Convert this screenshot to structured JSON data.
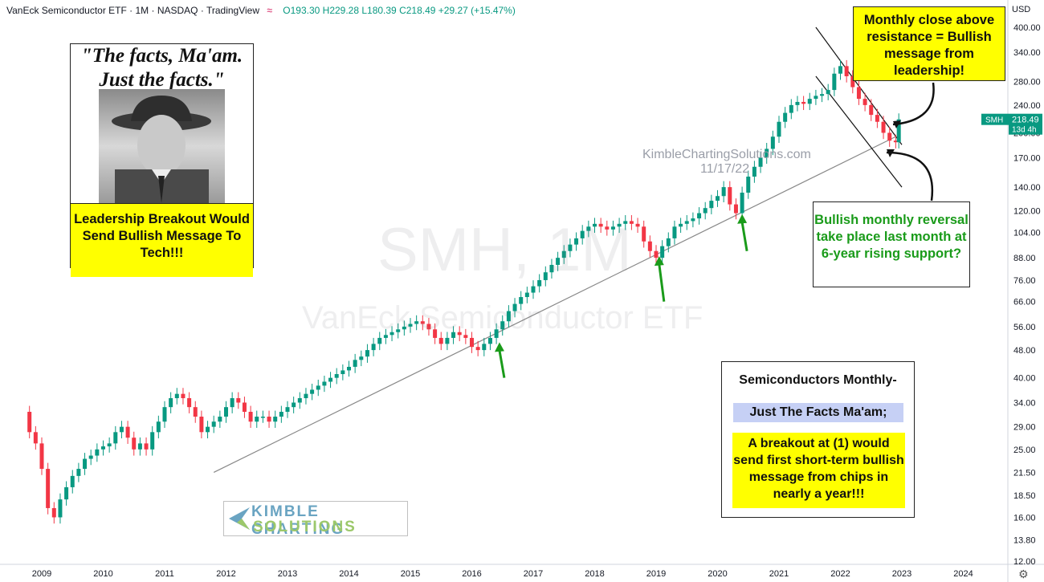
{
  "header": {
    "title": "VanEck Semiconductor ETF · 1M · NASDAQ · TradingView",
    "icon": "waves-icon",
    "ohlc": "O193.30 H229.28 L180.39 C218.49 +29.27 (+15.47%)"
  },
  "watermark": {
    "symbol": "SMH, 1M",
    "name": "VanEck Semiconductor ETF",
    "site": "KimbleChartingSolutions.com",
    "date": "11/17/22"
  },
  "price_label": {
    "symbol": "SMH",
    "price": "218.49",
    "countdown": "13d 4h"
  },
  "annotations": {
    "quote": "\"The facts, Ma'am. Just the facts.\"",
    "leadership": "Leadership Breakout Would Send Bullish Message To Tech!!!",
    "monthly_close": "Monthly close above resistance = Bullish message from leadership!",
    "reversal": "Bullish monthly reversal take place last month at 6-year rising support?",
    "semis_title": "Semiconductors Monthly-",
    "semis_subtitle": "Just The Facts Ma'am;",
    "semis_body": "A breakout at (1) would send first short-term bullish message from chips in nearly a year!!!"
  },
  "logo": {
    "line1": "KIMBLE CHARTING",
    "line2": "SOLUTIONS"
  },
  "colors": {
    "up": "#089981",
    "down": "#f23645",
    "arrow": "#1a9b1a",
    "highlight": "#ffff00",
    "axis_text": "#131722"
  },
  "chart_data": {
    "type": "candlestick",
    "scale": "log",
    "currency": "USD",
    "x_ticks": [
      "2009",
      "2010",
      "2011",
      "2012",
      "2013",
      "2014",
      "2015",
      "2016",
      "2017",
      "2018",
      "2019",
      "2020",
      "2021",
      "2022",
      "2023",
      "2024"
    ],
    "y_ticks": [
      "400.00",
      "340.00",
      "280.00",
      "240.00",
      "200.00",
      "170.00",
      "140.00",
      "120.00",
      "104.00",
      "88.00",
      "76.00",
      "66.00",
      "56.00",
      "48.00",
      "40.00",
      "34.00",
      "29.00",
      "25.00",
      "21.50",
      "18.50",
      "16.00",
      "13.80",
      "12.00"
    ],
    "last_price": 218.49,
    "series_close": [
      [
        2008.6,
        32
      ],
      [
        2008.8,
        28
      ],
      [
        2008.9,
        26
      ],
      [
        2009.0,
        22
      ],
      [
        2009.1,
        17
      ],
      [
        2009.2,
        16
      ],
      [
        2009.3,
        18
      ],
      [
        2009.4,
        19.5
      ],
      [
        2009.5,
        21
      ],
      [
        2009.6,
        22
      ],
      [
        2009.7,
        23.5
      ],
      [
        2009.8,
        24
      ],
      [
        2009.9,
        25
      ],
      [
        2010.0,
        25.5
      ],
      [
        2010.1,
        26
      ],
      [
        2010.2,
        28
      ],
      [
        2010.3,
        29
      ],
      [
        2010.4,
        27
      ],
      [
        2010.5,
        25
      ],
      [
        2010.6,
        26
      ],
      [
        2010.7,
        25
      ],
      [
        2010.8,
        28
      ],
      [
        2010.9,
        30
      ],
      [
        2011.0,
        33
      ],
      [
        2011.1,
        35
      ],
      [
        2011.2,
        36
      ],
      [
        2011.3,
        35
      ],
      [
        2011.4,
        33
      ],
      [
        2011.5,
        31
      ],
      [
        2011.6,
        28
      ],
      [
        2011.7,
        29
      ],
      [
        2011.8,
        30
      ],
      [
        2011.9,
        31
      ],
      [
        2012.0,
        33
      ],
      [
        2012.1,
        35
      ],
      [
        2012.2,
        34
      ],
      [
        2012.3,
        32
      ],
      [
        2012.4,
        30
      ],
      [
        2012.5,
        31
      ],
      [
        2012.6,
        31
      ],
      [
        2012.7,
        30
      ],
      [
        2012.8,
        31
      ],
      [
        2012.9,
        32
      ],
      [
        2013.0,
        33
      ],
      [
        2013.1,
        34
      ],
      [
        2013.2,
        35
      ],
      [
        2013.3,
        36
      ],
      [
        2013.4,
        37
      ],
      [
        2013.5,
        38
      ],
      [
        2013.6,
        39
      ],
      [
        2013.7,
        40
      ],
      [
        2013.8,
        41
      ],
      [
        2013.9,
        42
      ],
      [
        2014.0,
        43
      ],
      [
        2014.1,
        45
      ],
      [
        2014.2,
        46
      ],
      [
        2014.3,
        48
      ],
      [
        2014.4,
        50
      ],
      [
        2014.5,
        52
      ],
      [
        2014.6,
        53
      ],
      [
        2014.7,
        54
      ],
      [
        2014.8,
        55
      ],
      [
        2014.9,
        56
      ],
      [
        2015.0,
        57
      ],
      [
        2015.1,
        58
      ],
      [
        2015.2,
        57
      ],
      [
        2015.3,
        55
      ],
      [
        2015.4,
        52
      ],
      [
        2015.5,
        50
      ],
      [
        2015.6,
        52
      ],
      [
        2015.7,
        54
      ],
      [
        2015.8,
        53
      ],
      [
        2015.9,
        52
      ],
      [
        2016.0,
        49
      ],
      [
        2016.1,
        48
      ],
      [
        2016.2,
        50
      ],
      [
        2016.3,
        52
      ],
      [
        2016.4,
        55
      ],
      [
        2016.5,
        58
      ],
      [
        2016.6,
        62
      ],
      [
        2016.7,
        65
      ],
      [
        2016.8,
        68
      ],
      [
        2016.9,
        70
      ],
      [
        2017.0,
        73
      ],
      [
        2017.1,
        76
      ],
      [
        2017.2,
        80
      ],
      [
        2017.3,
        84
      ],
      [
        2017.4,
        88
      ],
      [
        2017.5,
        92
      ],
      [
        2017.6,
        96
      ],
      [
        2017.7,
        100
      ],
      [
        2017.8,
        105
      ],
      [
        2017.9,
        108
      ],
      [
        2018.0,
        110
      ],
      [
        2018.1,
        108
      ],
      [
        2018.2,
        106
      ],
      [
        2018.3,
        108
      ],
      [
        2018.4,
        110
      ],
      [
        2018.5,
        112
      ],
      [
        2018.6,
        110
      ],
      [
        2018.7,
        108
      ],
      [
        2018.8,
        98
      ],
      [
        2018.9,
        92
      ],
      [
        2019.0,
        88
      ],
      [
        2019.1,
        95
      ],
      [
        2019.2,
        100
      ],
      [
        2019.3,
        108
      ],
      [
        2019.4,
        110
      ],
      [
        2019.5,
        112
      ],
      [
        2019.6,
        114
      ],
      [
        2019.7,
        118
      ],
      [
        2019.8,
        122
      ],
      [
        2019.9,
        128
      ],
      [
        2020.0,
        132
      ],
      [
        2020.1,
        140
      ],
      [
        2020.2,
        125
      ],
      [
        2020.3,
        118
      ],
      [
        2020.4,
        135
      ],
      [
        2020.5,
        150
      ],
      [
        2020.6,
        160
      ],
      [
        2020.7,
        170
      ],
      [
        2020.8,
        180
      ],
      [
        2020.9,
        195
      ],
      [
        2021.0,
        215
      ],
      [
        2021.1,
        228
      ],
      [
        2021.2,
        240
      ],
      [
        2021.3,
        245
      ],
      [
        2021.4,
        242
      ],
      [
        2021.5,
        250
      ],
      [
        2021.6,
        255
      ],
      [
        2021.7,
        258
      ],
      [
        2021.8,
        265
      ],
      [
        2021.9,
        295
      ],
      [
        2022.0,
        310
      ],
      [
        2022.1,
        290
      ],
      [
        2022.2,
        270
      ],
      [
        2022.3,
        250
      ],
      [
        2022.4,
        240
      ],
      [
        2022.5,
        225
      ],
      [
        2022.6,
        215
      ],
      [
        2022.7,
        200
      ],
      [
        2022.8,
        190
      ],
      [
        2022.9,
        188
      ],
      [
        2022.95,
        218.49
      ]
    ],
    "support_line": [
      [
        2011.8,
        21.5
      ],
      [
        2022.9,
        195
      ]
    ],
    "channel_upper": [
      [
        2021.6,
        400
      ],
      [
        2023.0,
        185
      ]
    ],
    "channel_lower": [
      [
        2021.6,
        290
      ],
      [
        2023.0,
        140
      ]
    ],
    "arrows": [
      {
        "x": 2016.45,
        "y": 40,
        "tip_y": 50
      },
      {
        "x": 2019.05,
        "y": 66,
        "tip_y": 88
      },
      {
        "x": 2020.4,
        "y": 92,
        "tip_y": 116
      }
    ]
  }
}
